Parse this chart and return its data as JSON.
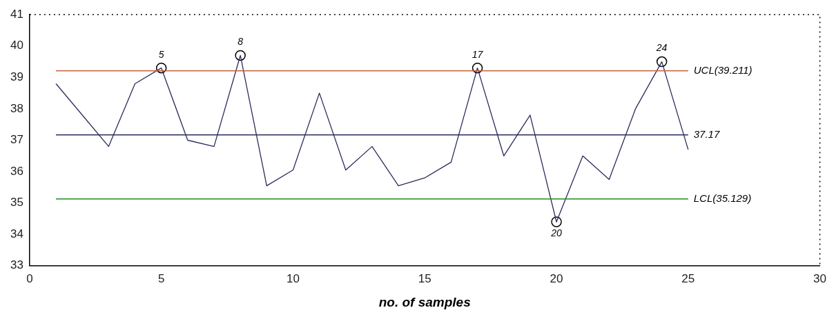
{
  "chart_data": {
    "type": "line",
    "xlabel": "no. of samples",
    "x": [
      1,
      2,
      3,
      4,
      5,
      6,
      7,
      8,
      9,
      10,
      11,
      12,
      13,
      14,
      15,
      16,
      17,
      18,
      19,
      20,
      21,
      22,
      23,
      24,
      25
    ],
    "series": [
      {
        "type": "line",
        "color": "#2b2b5b",
        "marker": "none",
        "values": [
          38.8,
          37.8,
          36.8,
          38.8,
          39.3,
          37.0,
          36.8,
          39.7,
          35.55,
          36.05,
          38.5,
          36.05,
          36.8,
          35.55,
          35.8,
          36.3,
          39.3,
          36.5,
          37.8,
          34.4,
          36.5,
          35.75,
          38.0,
          39.5,
          36.7
        ]
      },
      {
        "type": "scatter",
        "color": "#000000",
        "marker": "circle",
        "x": [
          5,
          8,
          17,
          20,
          24
        ],
        "values": [
          39.3,
          39.7,
          39.3,
          34.4,
          39.5
        ]
      }
    ],
    "annotations": [
      {
        "text": "5",
        "x": 5,
        "y": 39.3
      },
      {
        "text": "8",
        "x": 8,
        "y": 39.7
      },
      {
        "text": "17",
        "x": 17,
        "y": 39.3
      },
      {
        "text": "20",
        "x": 20,
        "y": 34.4
      },
      {
        "text": "24",
        "x": 24,
        "y": 39.5
      }
    ],
    "ref_lines": [
      {
        "axis": "y",
        "value": 39.211,
        "label": "UCL(39.211)",
        "color": "#c8603a"
      },
      {
        "axis": "y",
        "value": 37.17,
        "label": "37.17",
        "color": "#2b2b5b"
      },
      {
        "axis": "y",
        "value": 35.129,
        "label": "LCL(35.129)",
        "color": "#1e8c1e"
      }
    ],
    "xlim": [
      0,
      30
    ],
    "xticks": [
      0,
      5,
      10,
      15,
      20,
      25,
      30
    ],
    "ylim": [
      33,
      41
    ],
    "yticks": [
      33,
      34,
      35,
      36,
      37,
      38,
      39,
      40,
      41
    ],
    "grid": false,
    "legend": false
  }
}
